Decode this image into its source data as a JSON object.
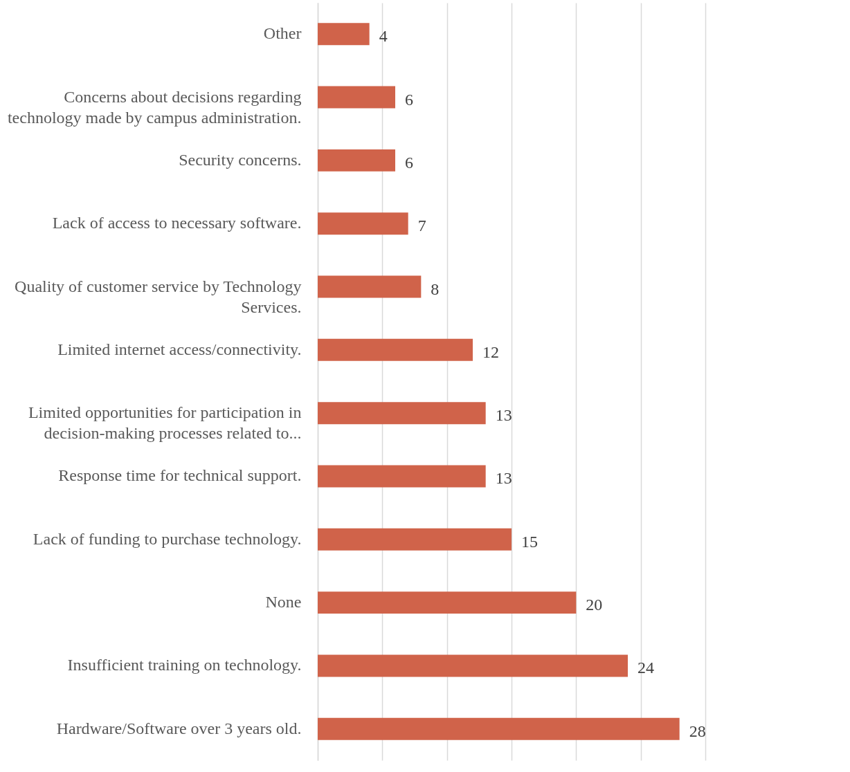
{
  "chart_data": {
    "type": "bar",
    "orientation": "horizontal",
    "categories": [
      "Other",
      "Concerns about decisions regarding technology made by campus administration.",
      "Security concerns.",
      "Lack of access to necessary software.",
      "Quality of customer service by Technology Services.",
      "Limited internet access/connectivity.",
      "Limited opportunities for participation in decision-making processes related to...",
      "Response time for technical support.",
      "Lack of funding to purchase technology.",
      "None",
      "Insufficient training on technology.",
      "Hardware/Software over 3 years old."
    ],
    "values": [
      4,
      6,
      6,
      7,
      8,
      12,
      13,
      13,
      15,
      20,
      24,
      28
    ],
    "color": "#d0634a",
    "xlim": [
      0,
      30
    ],
    "xticks": [
      {
        "value": 0,
        "label": null
      },
      {
        "value": 5,
        "label": null
      },
      {
        "value": 10,
        "label": null
      },
      {
        "value": 15,
        "label": null
      },
      {
        "value": 20,
        "label": null
      },
      {
        "value": 25,
        "label": null
      },
      {
        "value": 30,
        "label": null
      }
    ],
    "tick_labels": "y",
    "grid": "x",
    "data_labels": true
  }
}
